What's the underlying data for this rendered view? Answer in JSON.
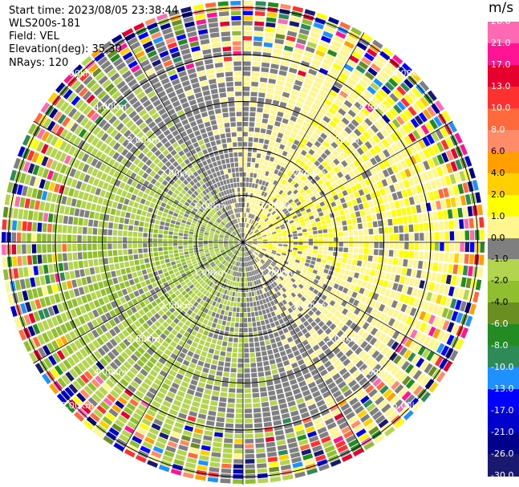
{
  "header": {
    "start_time": "Start time: 2023/08/05 23:38:44",
    "site": "WLS200s-181",
    "field": "Field: VEL",
    "elevation": "Elevation(deg): 35.30",
    "nrays": "NRays: 120"
  },
  "chart_data": {
    "type": "ppi",
    "nrays": 120,
    "ring_labels": [
      "1.00km",
      "2.00km",
      "3.00km",
      "4.00km",
      "5.00km"
    ],
    "ring_values_km": [
      1,
      2,
      3,
      4,
      5
    ],
    "max_range_km": 5.2,
    "colorbar": {
      "unit": "m/s",
      "tick_labels": [
        "26.0",
        "21.0",
        "17.0",
        "13.0",
        "10.0",
        "8.0",
        "6.0",
        "4.0",
        "2.0",
        "1.0",
        "0.0",
        "-1.0",
        "-2.0",
        "-4.0",
        "-6.0",
        "-8.0",
        "-10.0",
        "-13.0",
        "-17.0",
        "-21.0",
        "-26.0",
        "-30.0"
      ],
      "colors": [
        "#ff69b4",
        "#ff1493",
        "#e6002e",
        "#ff3030",
        "#ff6a3d",
        "#ff8c69",
        "#ffa000",
        "#ffcf00",
        "#ffff00",
        "#fff68f",
        "#7f7f7f",
        "#b3d44f",
        "#8fbf2f",
        "#6b8e23",
        "#228b22",
        "#2e8b57",
        "#1e90ff",
        "#0000ff",
        "#0000cd",
        "#00008b",
        "#191970"
      ],
      "min": -30.0,
      "max": 30.0
    }
  }
}
